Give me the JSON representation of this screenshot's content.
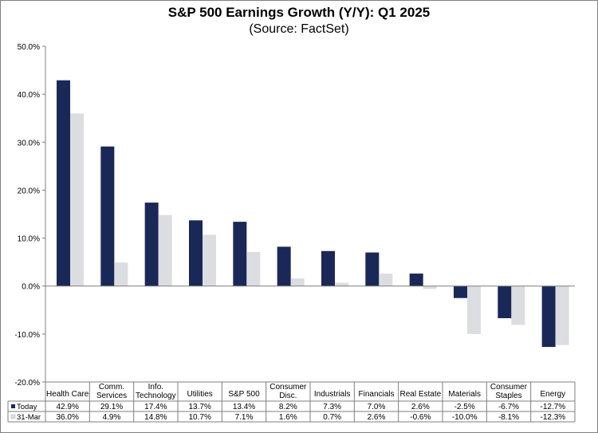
{
  "chart_data": {
    "type": "bar",
    "title": "S&P 500 Earnings Growth (Y/Y): Q1 2025",
    "subtitle": "(Source: FactSet)",
    "categories": [
      [
        "Health Care"
      ],
      [
        "Comm.",
        "Services"
      ],
      [
        "Info.",
        "Technology"
      ],
      [
        "Utilities"
      ],
      [
        "S&P 500"
      ],
      [
        "Consumer",
        "Disc."
      ],
      [
        "Industrials"
      ],
      [
        "Financials"
      ],
      [
        "Real Estate"
      ],
      [
        "Materials"
      ],
      [
        "Consumer",
        "Staples"
      ],
      [
        "Energy"
      ]
    ],
    "series": [
      {
        "name": "Today",
        "color": "#1a2858",
        "values": [
          42.9,
          29.1,
          17.4,
          13.7,
          13.4,
          8.2,
          7.3,
          7.0,
          2.6,
          -2.5,
          -6.7,
          -12.7
        ],
        "labels": [
          "42.9%",
          "29.1%",
          "17.4%",
          "13.7%",
          "13.4%",
          "8.2%",
          "7.3%",
          "7.0%",
          "2.6%",
          "-2.5%",
          "-6.7%",
          "-12.7%"
        ]
      },
      {
        "name": "31-Mar",
        "color": "#dcdde1",
        "values": [
          36.0,
          4.9,
          14.8,
          10.7,
          7.1,
          1.6,
          0.7,
          2.6,
          -0.6,
          -10.0,
          -8.1,
          -12.3
        ],
        "labels": [
          "36.0%",
          "4.9%",
          "14.8%",
          "10.7%",
          "7.1%",
          "1.6%",
          "0.7%",
          "2.6%",
          "-0.6%",
          "-10.0%",
          "-8.1%",
          "-12.3%"
        ]
      }
    ],
    "ylim": [
      -20,
      50
    ],
    "yticks": [
      -20,
      -10,
      0,
      10,
      20,
      30,
      40,
      50
    ],
    "ytick_labels": [
      "-20.0%",
      "-10.0%",
      "0.0%",
      "10.0%",
      "20.0%",
      "30.0%",
      "40.0%",
      "50.0%"
    ],
    "legend": "data-table-left",
    "grid": false
  }
}
